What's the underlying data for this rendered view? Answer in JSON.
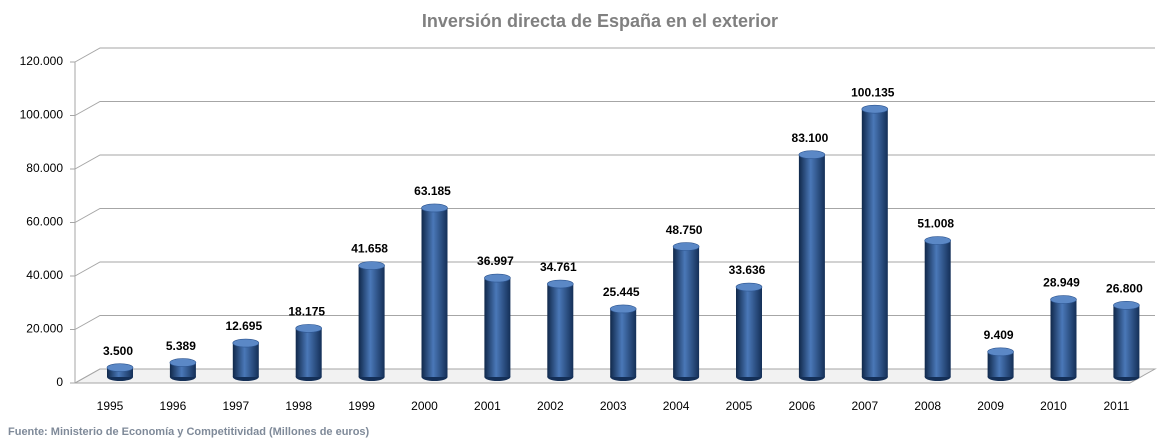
{
  "chart_data": {
    "type": "bar",
    "title": "Inversión directa de España en el exterior",
    "source": "Fuente: Ministerio de Economía y Competitividad (Millones de euros)",
    "categories": [
      "1995",
      "1996",
      "1997",
      "1998",
      "1999",
      "2000",
      "2001",
      "2002",
      "2003",
      "2004",
      "2005",
      "2006",
      "2007",
      "2008",
      "2009",
      "2010",
      "2011"
    ],
    "values": [
      3500,
      5389,
      12695,
      18175,
      41658,
      63185,
      36997,
      34761,
      25445,
      48750,
      33636,
      83100,
      100135,
      51008,
      9409,
      28949,
      26800
    ],
    "value_labels": [
      "3.500",
      "5.389",
      "12.695",
      "18.175",
      "41.658",
      "63.185",
      "36.997",
      "34.761",
      "25.445",
      "48.750",
      "33.636",
      "83.100",
      "100.135",
      "51.008",
      "9.409",
      "28.949",
      "26.800"
    ],
    "color": "#1f4e8c",
    "ylim": [
      0,
      120000
    ],
    "yticks": [
      0,
      {
        "value": 20000,
        "label": "20.000"
      },
      {
        "value": 40000,
        "label": "40.000"
      },
      {
        "value": 60000,
        "label": "60.000"
      },
      {
        "value": 80000,
        "label": "80.000"
      },
      {
        "value": 100000,
        "label": "100.000"
      },
      {
        "value": 120000,
        "label": "120.000"
      }
    ],
    "grid": true
  }
}
